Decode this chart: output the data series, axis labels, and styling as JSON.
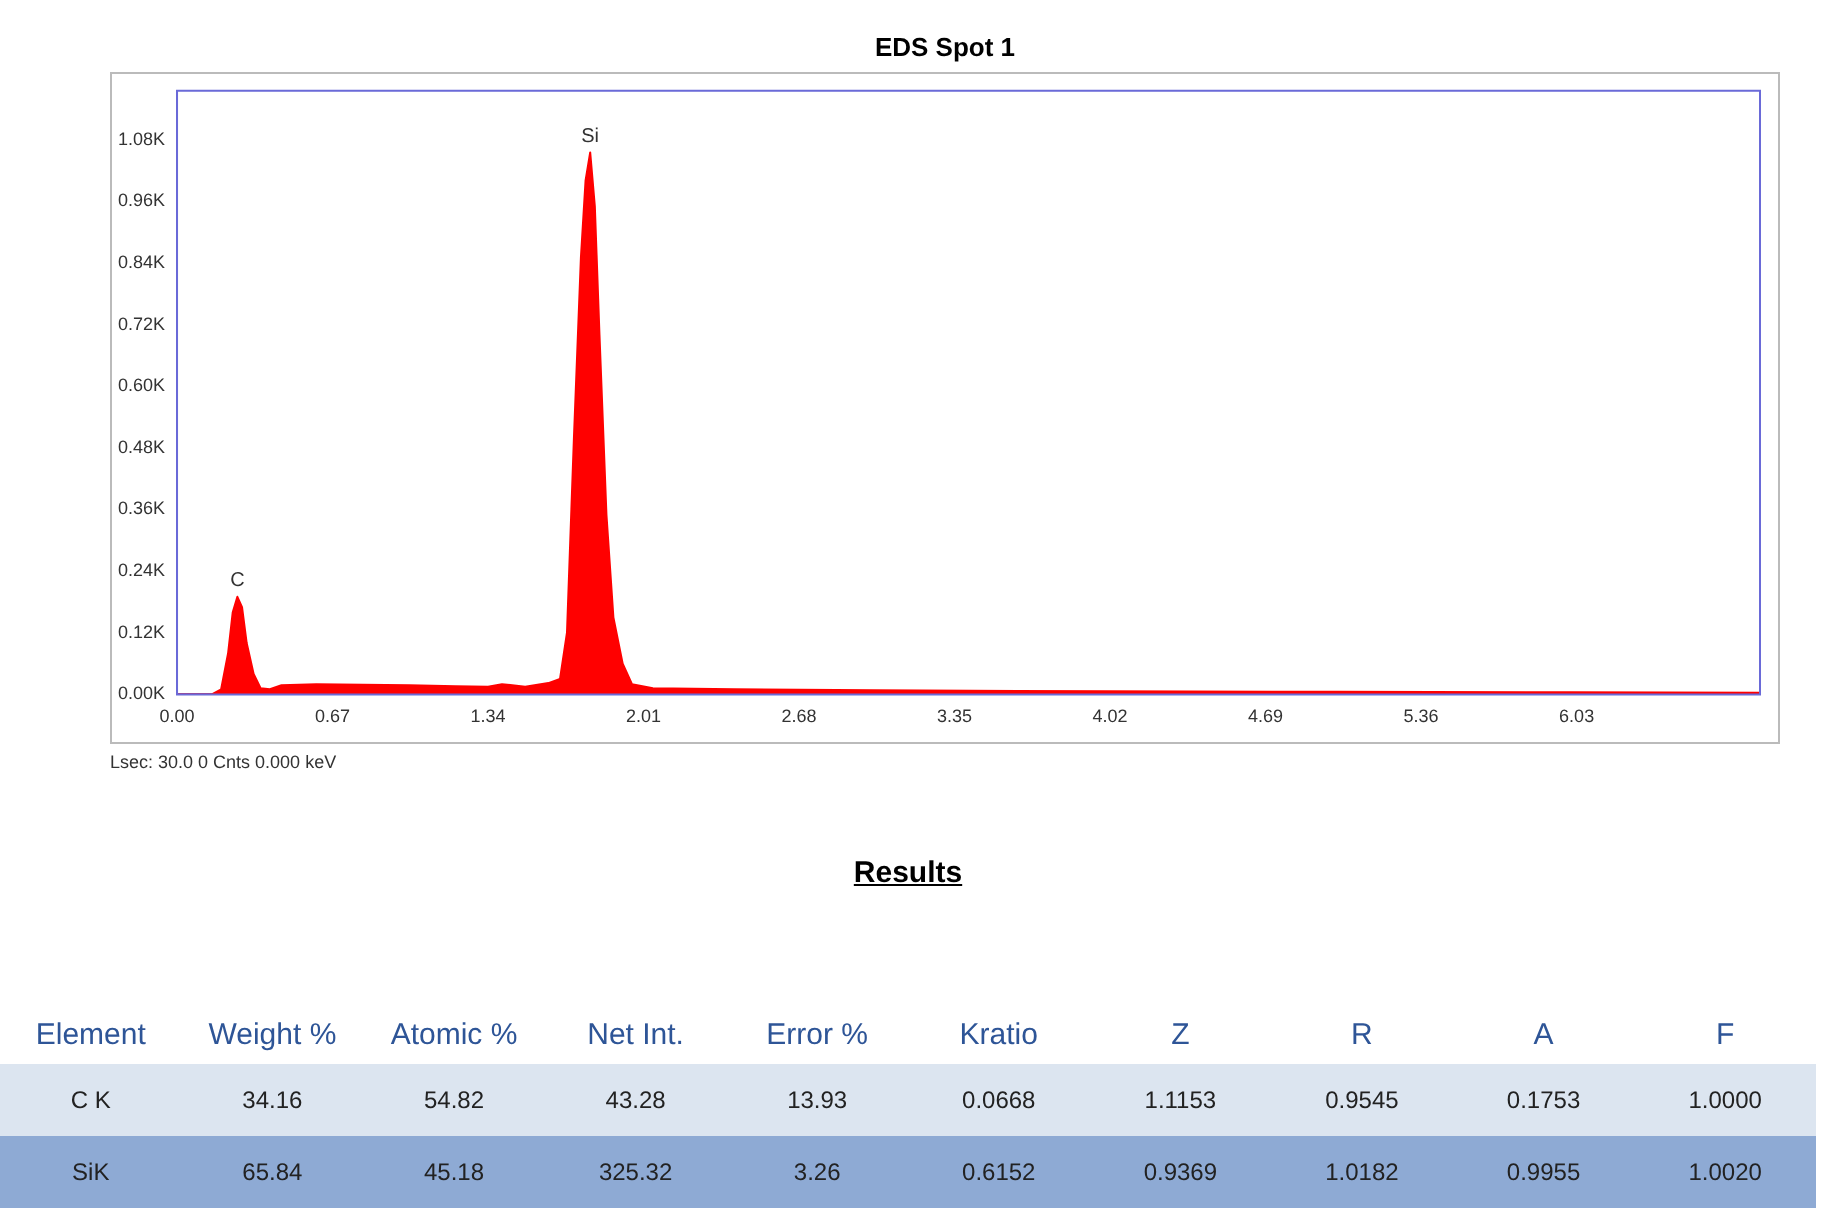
{
  "chart_data": [
    {
      "type": "area",
      "title": "EDS Spot 1",
      "x": [
        0,
        0.15,
        0.19,
        0.22,
        0.24,
        0.26,
        0.28,
        0.3,
        0.33,
        0.36,
        0.4,
        0.45,
        0.6,
        0.8,
        1.0,
        1.2,
        1.34,
        1.4,
        1.5,
        1.6,
        1.65,
        1.68,
        1.71,
        1.74,
        1.76,
        1.78,
        1.8,
        1.82,
        1.85,
        1.88,
        1.92,
        1.96,
        2.05,
        2.4,
        3.0,
        4.0,
        5.0,
        6.0,
        6.82
      ],
      "series": [
        {
          "color": "#ff0000",
          "values": [
            0,
            0,
            10,
            80,
            160,
            190,
            170,
            100,
            40,
            12,
            10,
            18,
            20,
            19,
            18,
            16,
            15,
            20,
            15,
            22,
            30,
            120,
            500,
            850,
            1000,
            1055,
            950,
            700,
            350,
            150,
            60,
            20,
            12,
            10,
            8,
            6,
            5,
            4,
            3
          ]
        }
      ],
      "xlim": [
        0,
        6.82
      ],
      "xticks": [
        {
          "value": 0,
          "label": "0.00"
        },
        0.67,
        1.34,
        2.01,
        2.68,
        3.35,
        4.02,
        4.69,
        5.36,
        6.03
      ],
      "ylim": [
        0,
        1175
      ],
      "yticks": [
        {
          "value": 0,
          "label": "0.00K"
        },
        {
          "value": 120,
          "label": "0.12K"
        },
        {
          "value": 240,
          "label": "0.24K"
        },
        {
          "value": 360,
          "label": "0.36K"
        },
        {
          "value": 480,
          "label": "0.48K"
        },
        {
          "value": 600,
          "label": "0.60K"
        },
        {
          "value": 720,
          "label": "0.72K"
        },
        {
          "value": 840,
          "label": "0.84K"
        },
        {
          "value": 960,
          "label": "0.96K"
        },
        {
          "value": 1080,
          "label": "1.08K"
        }
      ],
      "grid": false,
      "legend": false,
      "annotations": [
        {
          "text": "C",
          "x": 0.26,
          "y": 190
        },
        {
          "text": "Si",
          "x": 1.78,
          "y": 1055
        },
        "Lsec: 30.0 0 Cnts  0.000 keV"
      ]
    },
    {
      "type": "other",
      "title": "Results",
      "ylabel": "Element",
      "categories": [
        "Weight %",
        "Atomic %",
        "Net Int.",
        "Error %",
        "Kratio",
        "Z",
        "R",
        "A",
        "F"
      ],
      "y_categories": [
        "C K",
        "SiK"
      ],
      "cell_labels": [
        [
          "34.16",
          "54.82",
          "43.28",
          "13.93",
          "0.0668",
          "1.1153",
          "0.9545",
          "0.1753",
          "1.0000"
        ],
        [
          "65.84",
          "45.18",
          "325.32",
          "3.26",
          "0.6152",
          "0.9369",
          "1.0182",
          "0.9955",
          "1.0020"
        ]
      ]
    }
  ]
}
